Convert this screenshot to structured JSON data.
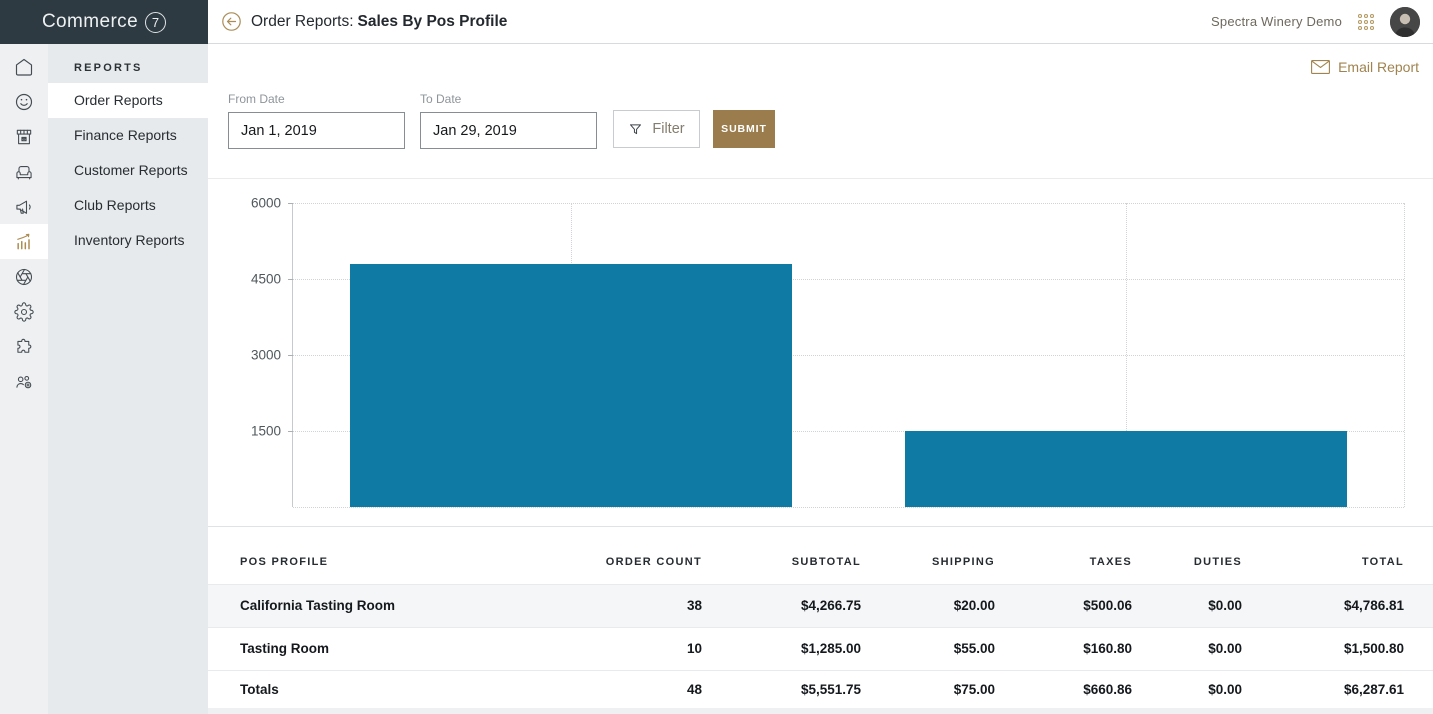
{
  "brand": {
    "name": "Commerce",
    "number": "7"
  },
  "topbar": {
    "title_prefix": "Order Reports:",
    "title": "Sales By Pos Profile",
    "account_name": "Spectra Winery Demo"
  },
  "sidebar": {
    "icons": [
      "home",
      "customers",
      "store",
      "club",
      "marketing",
      "reports",
      "pos",
      "settings",
      "integrations",
      "team"
    ],
    "active_icon": "reports"
  },
  "submenu": {
    "header": "REPORTS",
    "items": [
      "Order Reports",
      "Finance Reports",
      "Customer Reports",
      "Club Reports",
      "Inventory Reports"
    ],
    "active_item": "Order Reports"
  },
  "actions": {
    "email_report": "Email Report"
  },
  "filters": {
    "from": {
      "label": "From Date",
      "value": "Jan 1, 2019"
    },
    "to": {
      "label": "To Date",
      "value": "Jan 29, 2019"
    },
    "filter_button": "Filter",
    "submit_button": "SUBMIT"
  },
  "chart_data": {
    "type": "bar",
    "categories": [
      "California Tasting Room",
      "Tasting Room"
    ],
    "values": [
      4786.81,
      1500.8
    ],
    "title": "",
    "xlabel": "",
    "ylabel": "",
    "ylim": [
      0,
      6000
    ],
    "yticks": [
      6000,
      4500,
      3000,
      1500
    ],
    "bar_color": "#0f7aa3",
    "grid": "dotted horizontal lines at ticks, dotted vertical lines at category centers and right edge",
    "legend": "none",
    "x_tick_labels_visible": false
  },
  "table": {
    "columns": [
      "POS PROFILE",
      "ORDER COUNT",
      "SUBTOTAL",
      "SHIPPING",
      "TAXES",
      "DUTIES",
      "TOTAL"
    ],
    "rows": [
      [
        "California Tasting Room",
        "38",
        "$4,266.75",
        "$20.00",
        "$500.06",
        "$0.00",
        "$4,786.81"
      ],
      [
        "Tasting Room",
        "10",
        "$1,285.00",
        "$55.00",
        "$160.80",
        "$0.00",
        "$1,500.80"
      ]
    ],
    "totals": [
      "Totals",
      "48",
      "$5,551.75",
      "$75.00",
      "$660.86",
      "$0.00",
      "$6,287.61"
    ]
  },
  "colors": {
    "accent_gold": "#a0834f",
    "submit_gold": "#9b7c4c",
    "bar_teal": "#0f7aa3",
    "topnav_dark": "#2d3a41"
  }
}
